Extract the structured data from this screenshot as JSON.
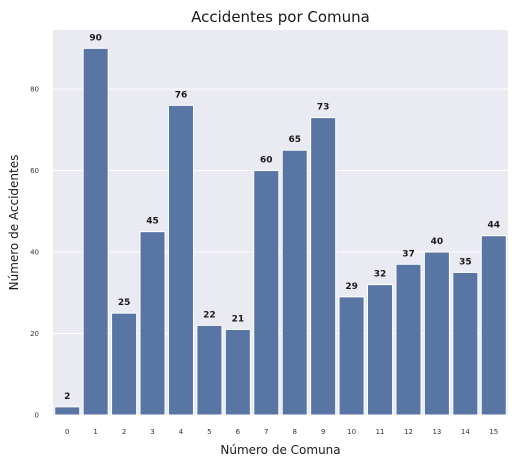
{
  "chart_data": {
    "type": "bar",
    "title": "Accidentes por Comuna",
    "xlabel": "Número de Comuna",
    "ylabel": "Número de Accidentes",
    "categories": [
      "0",
      "1",
      "2",
      "3",
      "4",
      "5",
      "6",
      "7",
      "8",
      "9",
      "10",
      "11",
      "12",
      "13",
      "14",
      "15"
    ],
    "values": [
      2,
      90,
      25,
      45,
      76,
      22,
      21,
      60,
      65,
      73,
      29,
      32,
      37,
      40,
      35,
      44
    ],
    "data_labels": [
      "2",
      "90",
      "25",
      "45",
      "76",
      "22",
      "21",
      "60",
      "65",
      "73",
      "29",
      "32",
      "37",
      "40",
      "35",
      "44"
    ],
    "yticks": [
      0,
      20,
      40,
      60,
      80
    ],
    "ytick_labels": [
      "0",
      "20",
      "40",
      "60",
      "80"
    ],
    "ylim": [
      0,
      94.5
    ],
    "grid": true,
    "colors": {
      "bar": "#5875a4",
      "plot_background": "#eaeaf2",
      "grid": "#ffffff"
    }
  }
}
